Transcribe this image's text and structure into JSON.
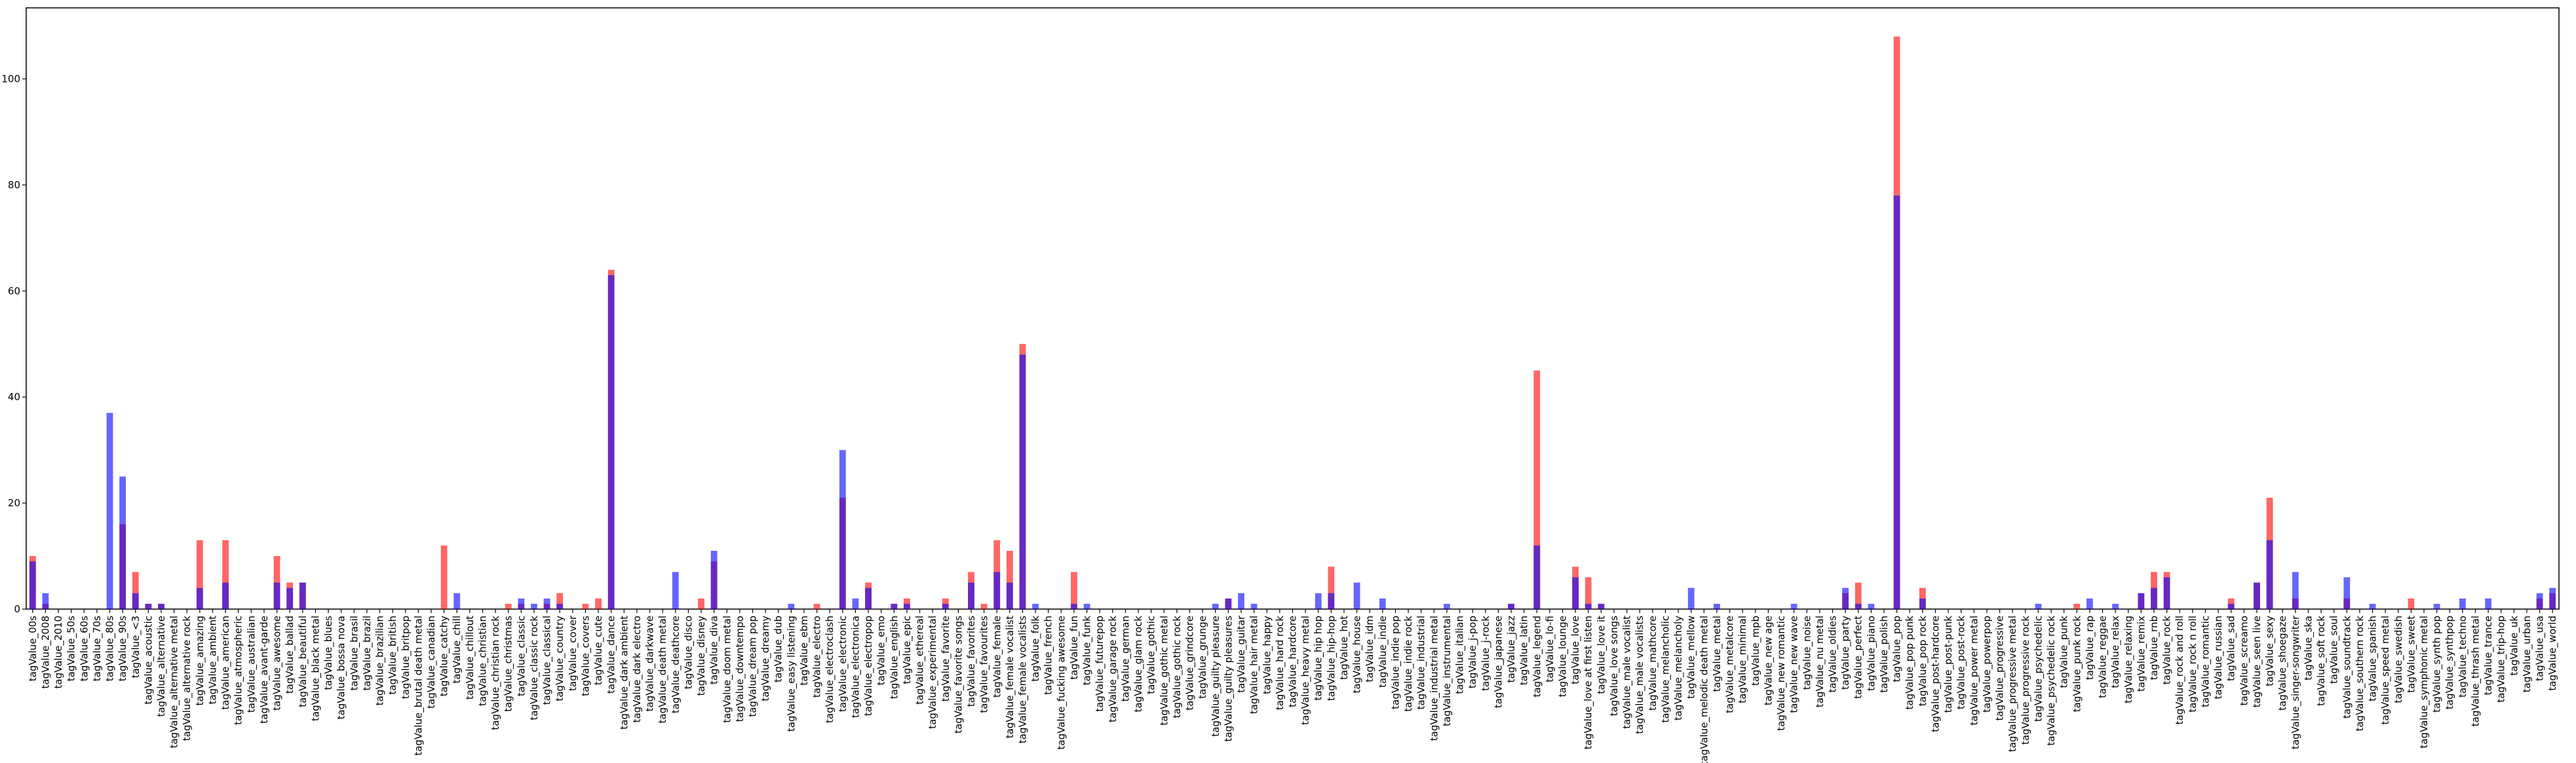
{
  "chart_data": {
    "type": "bar",
    "categories": [
      "tagValue_00s",
      "tagValue_2008",
      "tagValue_2010",
      "tagValue_50s",
      "tagValue_60s",
      "tagValue_70s",
      "tagValue_80s",
      "tagValue_90s",
      "tagValue_<3",
      "tagValue_acoustic",
      "tagValue_alternative",
      "tagValue_alternative metal",
      "tagValue_alternative rock",
      "tagValue_amazing",
      "tagValue_ambient",
      "tagValue_american",
      "tagValue_atmospheric",
      "tagValue_australian",
      "tagValue_avant-garde",
      "tagValue_awesome",
      "tagValue_ballad",
      "tagValue_beautiful",
      "tagValue_black metal",
      "tagValue_blues",
      "tagValue_bossa nova",
      "tagValue_brasil",
      "tagValue_brazil",
      "tagValue_brazilian",
      "tagValue_british",
      "tagValue_britpop",
      "tagValue_brutal death metal",
      "tagValue_canadian",
      "tagValue_catchy",
      "tagValue_chill",
      "tagValue_chillout",
      "tagValue_christian",
      "tagValue_christian rock",
      "tagValue_christmas",
      "tagValue_classic",
      "tagValue_classic rock",
      "tagValue_classical",
      "tagValue_country",
      "tagValue_cover",
      "tagValue_covers",
      "tagValue_cute",
      "tagValue_dance",
      "tagValue_dark ambient",
      "tagValue_dark electro",
      "tagValue_darkwave",
      "tagValue_death metal",
      "tagValue_deathcore",
      "tagValue_disco",
      "tagValue_disney",
      "tagValue_diva",
      "tagValue_doom metal",
      "tagValue_downtempo",
      "tagValue_dream pop",
      "tagValue_dreamy",
      "tagValue_dub",
      "tagValue_easy listening",
      "tagValue_ebm",
      "tagValue_electro",
      "tagValue_electroclash",
      "tagValue_electronic",
      "tagValue_electronica",
      "tagValue_electropop",
      "tagValue_emo",
      "tagValue_english",
      "tagValue_epic",
      "tagValue_ethereal",
      "tagValue_experimental",
      "tagValue_favorite",
      "tagValue_favorite songs",
      "tagValue_favorites",
      "tagValue_favourites",
      "tagValue_female",
      "tagValue_female vocalist",
      "tagValue_female vocalists",
      "tagValue_folk",
      "tagValue_french",
      "tagValue_fucking awesome",
      "tagValue_fun",
      "tagValue_funk",
      "tagValue_futurepop",
      "tagValue_garage rock",
      "tagValue_german",
      "tagValue_glam rock",
      "tagValue_gothic",
      "tagValue_gothic metal",
      "tagValue_gothic rock",
      "tagValue_grindcore",
      "tagValue_grunge",
      "tagValue_guilty pleasure",
      "tagValue_guilty pleasures",
      "tagValue_guitar",
      "tagValue_hair metal",
      "tagValue_happy",
      "tagValue_hard rock",
      "tagValue_hardcore",
      "tagValue_heavy metal",
      "tagValue_hip hop",
      "tagValue_hip-hop",
      "tagValue_hot",
      "tagValue_house",
      "tagValue_idm",
      "tagValue_indie",
      "tagValue_indie pop",
      "tagValue_indie rock",
      "tagValue_industrial",
      "tagValue_industrial metal",
      "tagValue_instrumental",
      "tagValue_italian",
      "tagValue_j-pop",
      "tagValue_j-rock",
      "tagValue_japanese",
      "tagValue_jazz",
      "tagValue_latin",
      "tagValue_legend",
      "tagValue_lo-fi",
      "tagValue_lounge",
      "tagValue_love",
      "tagValue_love at first listen",
      "tagValue_love it",
      "tagValue_love songs",
      "tagValue_male vocalist",
      "tagValue_male vocalists",
      "tagValue_mathcore",
      "tagValue_melancholic",
      "tagValue_melancholy",
      "tagValue_mellow",
      "tagValue_melodic death metal",
      "tagValue_metal",
      "tagValue_metalcore",
      "tagValue_minimal",
      "tagValue_mpb",
      "tagValue_new age",
      "tagValue_new romantic",
      "tagValue_new wave",
      "tagValue_noise",
      "tagValue_nu metal",
      "tagValue_oldies",
      "tagValue_party",
      "tagValue_perfect",
      "tagValue_piano",
      "tagValue_polish",
      "tagValue_pop",
      "tagValue_pop punk",
      "tagValue_pop rock",
      "tagValue_post-hardcore",
      "tagValue_post-punk",
      "tagValue_post-rock",
      "tagValue_power metal",
      "tagValue_powerpop",
      "tagValue_progressive",
      "tagValue_progressive metal",
      "tagValue_progressive rock",
      "tagValue_psychedelic",
      "tagValue_psychedelic rock",
      "tagValue_punk",
      "tagValue_punk rock",
      "tagValue_rap",
      "tagValue_reggae",
      "tagValue_relax",
      "tagValue_relaxing",
      "tagValue_remix",
      "tagValue_rnb",
      "tagValue_rock",
      "tagValue_rock and roll",
      "tagValue_rock n roll",
      "tagValue_romantic",
      "tagValue_russian",
      "tagValue_sad",
      "tagValue_screamo",
      "tagValue_seen live",
      "tagValue_sexy",
      "tagValue_shoegaze",
      "tagValue_singer-songwriter",
      "tagValue_ska",
      "tagValue_soft rock",
      "tagValue_soul",
      "tagValue_soundtrack",
      "tagValue_southern rock",
      "tagValue_spanish",
      "tagValue_speed metal",
      "tagValue_swedish",
      "tagValue_sweet",
      "tagValue_symphonic metal",
      "tagValue_synth pop",
      "tagValue_synthpop",
      "tagValue_techno",
      "tagValue_thrash metal",
      "tagValue_trance",
      "tagValue_trip-hop",
      "tagValue_uk",
      "tagValue_urban",
      "tagValue_usa",
      "tagValue_world"
    ],
    "series": [
      {
        "color": "#ff0000",
        "values": [
          10,
          1,
          0,
          0,
          0,
          0,
          0,
          16,
          7,
          1,
          1,
          0,
          0,
          13,
          0,
          13,
          0,
          0,
          0,
          10,
          5,
          5,
          0,
          0,
          0,
          0,
          0,
          0,
          0,
          0,
          0,
          0,
          12,
          0,
          0,
          0,
          0,
          1,
          1,
          0,
          1,
          3,
          0,
          1,
          2,
          64,
          0,
          0,
          0,
          0,
          0,
          0,
          2,
          9,
          0,
          0,
          0,
          0,
          0,
          0,
          0,
          1,
          0,
          21,
          0,
          5,
          0,
          1,
          2,
          0,
          0,
          2,
          0,
          7,
          1,
          13,
          11,
          50,
          0,
          0,
          0,
          7,
          0,
          0,
          0,
          0,
          0,
          0,
          0,
          0,
          0,
          0,
          0,
          2,
          0,
          0,
          0,
          0,
          0,
          0,
          0,
          8,
          0,
          0,
          0,
          0,
          0,
          0,
          0,
          0,
          0,
          0,
          0,
          0,
          0,
          1,
          0,
          45,
          0,
          0,
          8,
          6,
          1,
          0,
          0,
          0,
          0,
          0,
          0,
          0,
          0,
          0,
          0,
          0,
          0,
          0,
          0,
          0,
          0,
          0,
          0,
          3,
          5,
          0,
          0,
          108,
          0,
          4,
          0,
          0,
          0,
          0,
          0,
          0,
          0,
          0,
          0,
          0,
          0,
          1,
          0,
          0,
          0,
          0,
          3,
          7,
          7,
          0,
          0,
          0,
          0,
          2,
          0,
          5,
          21,
          0,
          2,
          0,
          0,
          0,
          2,
          0,
          0,
          0,
          0,
          2,
          0,
          0,
          0,
          0,
          0,
          0,
          0,
          0,
          0,
          2,
          3
        ]
      },
      {
        "color": "#0000ff",
        "values": [
          9,
          3,
          0,
          0,
          0,
          0,
          37,
          25,
          3,
          1,
          1,
          0,
          0,
          4,
          0,
          5,
          0,
          0,
          0,
          5,
          4,
          5,
          0,
          0,
          0,
          0,
          0,
          0,
          0,
          0,
          0,
          0,
          0,
          3,
          0,
          0,
          0,
          0,
          2,
          1,
          2,
          1,
          0,
          0,
          0,
          63,
          0,
          0,
          0,
          0,
          7,
          0,
          0,
          11,
          0,
          0,
          0,
          0,
          0,
          1,
          0,
          0,
          0,
          30,
          2,
          4,
          0,
          1,
          1,
          0,
          0,
          1,
          0,
          5,
          0,
          7,
          5,
          48,
          1,
          0,
          0,
          1,
          1,
          0,
          0,
          0,
          0,
          0,
          0,
          0,
          0,
          0,
          1,
          2,
          3,
          1,
          0,
          0,
          0,
          0,
          3,
          3,
          0,
          5,
          0,
          2,
          0,
          0,
          0,
          0,
          1,
          0,
          0,
          0,
          0,
          1,
          0,
          12,
          0,
          0,
          6,
          1,
          1,
          0,
          0,
          0,
          0,
          0,
          0,
          4,
          0,
          1,
          0,
          0,
          0,
          0,
          0,
          1,
          0,
          0,
          0,
          4,
          1,
          1,
          0,
          78,
          0,
          2,
          0,
          0,
          0,
          0,
          0,
          0,
          0,
          0,
          1,
          0,
          0,
          0,
          2,
          0,
          1,
          0,
          3,
          4,
          6,
          0,
          0,
          0,
          0,
          1,
          0,
          5,
          13,
          0,
          7,
          0,
          0,
          0,
          6,
          0,
          1,
          0,
          0,
          0,
          0,
          1,
          0,
          2,
          0,
          2,
          0,
          0,
          0,
          3,
          4
        ]
      }
    ],
    "ylim": [
      0,
      113.4
    ],
    "yticks": [
      0,
      20,
      40,
      60,
      80,
      100
    ]
  }
}
